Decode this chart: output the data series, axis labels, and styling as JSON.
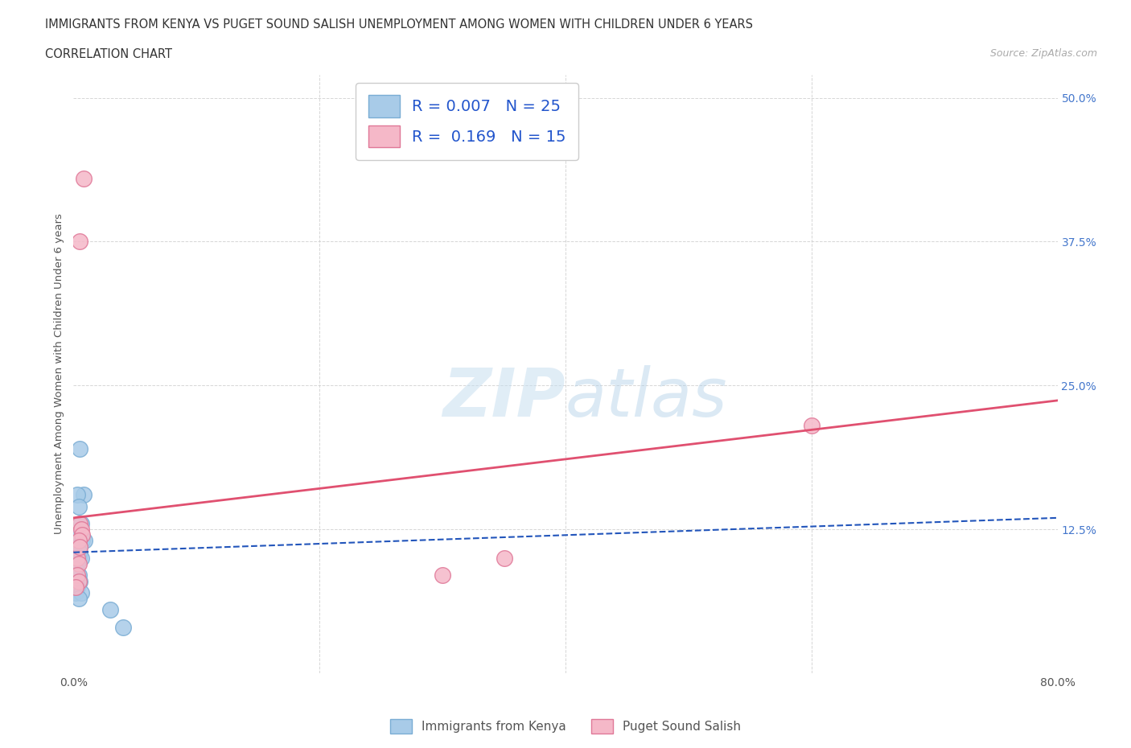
{
  "title_line1": "IMMIGRANTS FROM KENYA VS PUGET SOUND SALISH UNEMPLOYMENT AMONG WOMEN WITH CHILDREN UNDER 6 YEARS",
  "title_line2": "CORRELATION CHART",
  "source": "Source: ZipAtlas.com",
  "ylabel": "Unemployment Among Women with Children Under 6 years",
  "xlim": [
    0.0,
    0.8
  ],
  "ylim": [
    0.0,
    0.52
  ],
  "yticks": [
    0.0,
    0.125,
    0.25,
    0.375,
    0.5
  ],
  "yticklabels": [
    "",
    "12.5%",
    "25.0%",
    "37.5%",
    "50.0%"
  ],
  "blue_color": "#A8CBE8",
  "blue_edge": "#7AADD4",
  "pink_color": "#F5B8C8",
  "pink_edge": "#E07898",
  "trend_blue_color": "#2255BB",
  "trend_pink_color": "#E05070",
  "R_blue": 0.007,
  "N_blue": 25,
  "R_pink": 0.169,
  "N_pink": 15,
  "watermark": "ZIPatlas",
  "legend_label_blue": "Immigrants from Kenya",
  "legend_label_pink": "Puget Sound Salish",
  "blue_scatter_x": [
    0.005,
    0.008,
    0.003,
    0.004,
    0.006,
    0.002,
    0.007,
    0.009,
    0.003,
    0.005,
    0.002,
    0.001,
    0.004,
    0.006,
    0.003,
    0.002,
    0.004,
    0.001,
    0.005,
    0.003,
    0.002,
    0.006,
    0.004,
    0.03,
    0.04
  ],
  "blue_scatter_y": [
    0.195,
    0.155,
    0.155,
    0.145,
    0.13,
    0.12,
    0.115,
    0.115,
    0.11,
    0.105,
    0.1,
    0.1,
    0.1,
    0.1,
    0.095,
    0.09,
    0.085,
    0.085,
    0.08,
    0.075,
    0.07,
    0.07,
    0.065,
    0.055,
    0.04
  ],
  "pink_scatter_x": [
    0.008,
    0.005,
    0.005,
    0.006,
    0.007,
    0.004,
    0.003,
    0.004,
    0.3,
    0.35,
    0.6,
    0.003,
    0.004,
    0.002,
    0.005
  ],
  "pink_scatter_y": [
    0.43,
    0.375,
    0.13,
    0.125,
    0.12,
    0.115,
    0.1,
    0.095,
    0.085,
    0.1,
    0.215,
    0.085,
    0.08,
    0.075,
    0.11
  ],
  "blue_trend_y_start": 0.105,
  "blue_trend_y_end": 0.135,
  "pink_trend_y_start": 0.135,
  "pink_trend_y_end": 0.237,
  "background_color": "#FFFFFF",
  "grid_color": "#CCCCCC"
}
